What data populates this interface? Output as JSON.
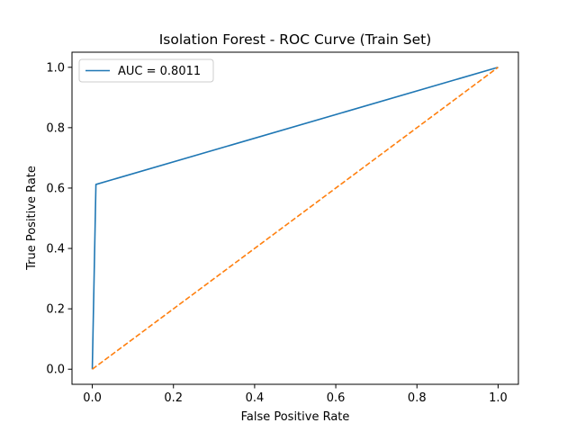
{
  "chart_data": {
    "type": "line",
    "title": "Isolation Forest - ROC Curve (Train Set)",
    "xlabel": "False Positive Rate",
    "ylabel": "True Positive Rate",
    "xlim": [
      -0.05,
      1.05
    ],
    "ylim": [
      -0.05,
      1.05
    ],
    "xticks": [
      0.0,
      0.2,
      0.4,
      0.6,
      0.8,
      1.0
    ],
    "yticks": [
      0.0,
      0.2,
      0.4,
      0.6,
      0.8,
      1.0
    ],
    "xtick_labels": [
      "0.0",
      "0.2",
      "0.4",
      "0.6",
      "0.8",
      "1.0"
    ],
    "ytick_labels": [
      "0.0",
      "0.2",
      "0.4",
      "0.6",
      "0.8",
      "1.0"
    ],
    "grid": false,
    "legend": {
      "placement": "top-left"
    },
    "series": [
      {
        "name": "AUC = 0.8011",
        "color": "#1f77b4",
        "style": "solid",
        "x": [
          0.0,
          0.009,
          1.0
        ],
        "y": [
          0.0,
          0.612,
          1.0
        ]
      },
      {
        "color": "#ff7f0e",
        "style": "dashed",
        "x": [
          0.0,
          1.0
        ],
        "y": [
          0.0,
          1.0
        ]
      }
    ]
  }
}
